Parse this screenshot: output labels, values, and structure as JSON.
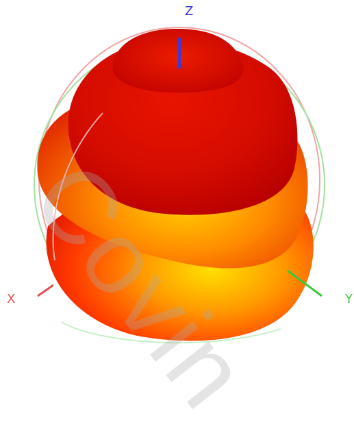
{
  "axes": {
    "z_label": "Z",
    "x_label": "X",
    "y_label": "Y",
    "z_color": "#3a3ad6",
    "x_color": "#e05050",
    "y_color": "#3cc83c"
  },
  "pattern": {
    "colors": {
      "peak": "#ffd400",
      "mid": "#ff6a00",
      "low": "#e01000",
      "shade": "#c40000"
    }
  },
  "guides": {
    "ring_color_1": "#f3a3a3",
    "ring_color_2": "#9fe39f"
  },
  "watermark": {
    "text": "Covin"
  }
}
